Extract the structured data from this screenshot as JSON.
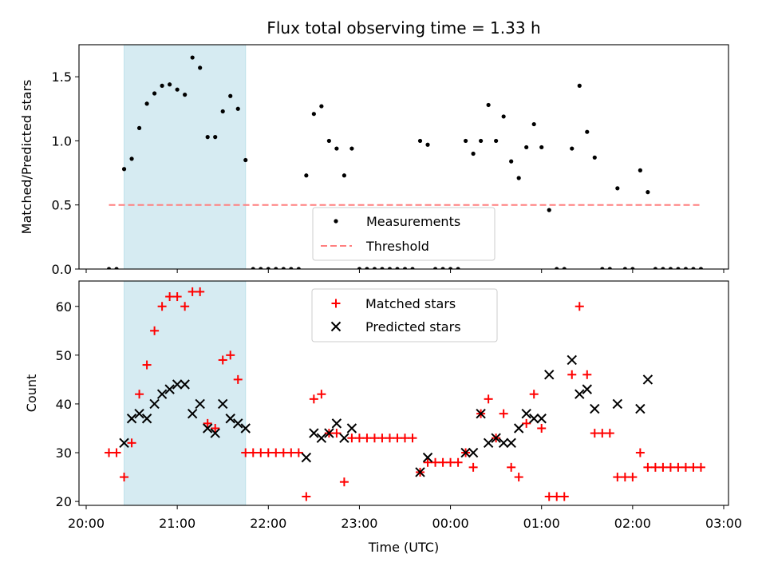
{
  "title": "Flux total observing time = 1.33 h",
  "colors": {
    "shade": "#add8e6",
    "measurements": "#000000",
    "threshold": "#ff7f7f",
    "matched": "#ff0000",
    "predicted": "#000000"
  },
  "chart_data": [
    {
      "type": "scatter",
      "ylabel": "Matched/Predicted stars",
      "xlim": [
        "20:00",
        "03:00"
      ],
      "ylim": [
        0,
        1.75
      ],
      "yticks": [
        {
          "value": 0.0,
          "label": "0.0"
        },
        {
          "value": 0.5,
          "label": "0.5"
        },
        {
          "value": 1.0,
          "label": "1.0"
        },
        {
          "value": 1.5,
          "label": "1.5"
        }
      ],
      "shaded_interval": [
        "20:25",
        "21:45"
      ],
      "legend": {
        "placement": "lower-center"
      },
      "threshold": {
        "name": "Threshold",
        "y": 0.5,
        "x_from": "20:15",
        "x_to": "02:45",
        "style": "dashed"
      },
      "series": [
        {
          "name": "Measurements",
          "marker": "dot",
          "points": [
            [
              "20:15",
              0
            ],
            [
              "20:20",
              0
            ],
            [
              "20:25",
              0.78
            ],
            [
              "20:30",
              0.86
            ],
            [
              "20:35",
              1.1
            ],
            [
              "20:40",
              1.29
            ],
            [
              "20:45",
              1.37
            ],
            [
              "20:50",
              1.43
            ],
            [
              "20:55",
              1.44
            ],
            [
              "21:00",
              1.4
            ],
            [
              "21:05",
              1.36
            ],
            [
              "21:10",
              1.65
            ],
            [
              "21:15",
              1.57
            ],
            [
              "21:20",
              1.03
            ],
            [
              "21:25",
              1.03
            ],
            [
              "21:30",
              1.23
            ],
            [
              "21:35",
              1.35
            ],
            [
              "21:40",
              1.25
            ],
            [
              "21:45",
              0.85
            ],
            [
              "21:50",
              0
            ],
            [
              "21:55",
              0
            ],
            [
              "22:00",
              0
            ],
            [
              "22:05",
              0
            ],
            [
              "22:10",
              0
            ],
            [
              "22:15",
              0
            ],
            [
              "22:20",
              0
            ],
            [
              "22:25",
              0.73
            ],
            [
              "22:30",
              1.21
            ],
            [
              "22:35",
              1.27
            ],
            [
              "22:40",
              1.0
            ],
            [
              "22:45",
              0.94
            ],
            [
              "22:50",
              0.73
            ],
            [
              "22:55",
              0.94
            ],
            [
              "23:00",
              0
            ],
            [
              "23:05",
              0
            ],
            [
              "23:10",
              0
            ],
            [
              "23:15",
              0
            ],
            [
              "23:20",
              0
            ],
            [
              "23:25",
              0
            ],
            [
              "23:30",
              0
            ],
            [
              "23:35",
              0
            ],
            [
              "23:40",
              1.0
            ],
            [
              "23:45",
              0.97
            ],
            [
              "23:50",
              0
            ],
            [
              "23:55",
              0
            ],
            [
              "00:00",
              0
            ],
            [
              "00:05",
              0
            ],
            [
              "00:10",
              1.0
            ],
            [
              "00:15",
              0.9
            ],
            [
              "00:20",
              1.0
            ],
            [
              "00:25",
              1.28
            ],
            [
              "00:30",
              1.0
            ],
            [
              "00:35",
              1.19
            ],
            [
              "00:40",
              0.84
            ],
            [
              "00:45",
              0.71
            ],
            [
              "00:50",
              0.95
            ],
            [
              "00:55",
              1.13
            ],
            [
              "01:00",
              0.95
            ],
            [
              "01:05",
              0.46
            ],
            [
              "01:10",
              0
            ],
            [
              "01:15",
              0
            ],
            [
              "01:20",
              0.94
            ],
            [
              "01:25",
              1.43
            ],
            [
              "01:30",
              1.07
            ],
            [
              "01:35",
              0.87
            ],
            [
              "01:40",
              0
            ],
            [
              "01:45",
              0
            ],
            [
              "01:50",
              0.63
            ],
            [
              "01:55",
              0
            ],
            [
              "02:00",
              0
            ],
            [
              "02:05",
              0.77
            ],
            [
              "02:10",
              0.6
            ],
            [
              "02:15",
              0
            ],
            [
              "02:20",
              0
            ],
            [
              "02:25",
              0
            ],
            [
              "02:30",
              0
            ],
            [
              "02:35",
              0
            ],
            [
              "02:40",
              0
            ],
            [
              "02:45",
              0
            ]
          ]
        }
      ]
    },
    {
      "type": "scatter",
      "xlabel": "Time (UTC)",
      "ylabel": "Count",
      "xlim": [
        "20:00",
        "03:00"
      ],
      "ylim": [
        19.2,
        65.2
      ],
      "xticks": [
        "20:00",
        "21:00",
        "22:00",
        "23:00",
        "00:00",
        "01:00",
        "02:00",
        "03:00"
      ],
      "yticks": [
        {
          "value": 20,
          "label": "20"
        },
        {
          "value": 30,
          "label": "30"
        },
        {
          "value": 40,
          "label": "40"
        },
        {
          "value": 50,
          "label": "50"
        },
        {
          "value": 60,
          "label": "60"
        }
      ],
      "shaded_interval": [
        "20:25",
        "21:45"
      ],
      "legend": {
        "placement": "top-center"
      },
      "series": [
        {
          "name": "Matched stars",
          "marker": "plus",
          "points": [
            [
              "20:15",
              30
            ],
            [
              "20:20",
              30
            ],
            [
              "20:25",
              25
            ],
            [
              "20:30",
              32
            ],
            [
              "20:35",
              42
            ],
            [
              "20:40",
              48
            ],
            [
              "20:45",
              55
            ],
            [
              "20:50",
              60
            ],
            [
              "20:55",
              62
            ],
            [
              "21:00",
              62
            ],
            [
              "21:05",
              60
            ],
            [
              "21:10",
              63
            ],
            [
              "21:15",
              63
            ],
            [
              "21:20",
              36
            ],
            [
              "21:25",
              35
            ],
            [
              "21:30",
              49
            ],
            [
              "21:35",
              50
            ],
            [
              "21:40",
              45
            ],
            [
              "21:45",
              30
            ],
            [
              "21:50",
              30
            ],
            [
              "21:55",
              30
            ],
            [
              "22:00",
              30
            ],
            [
              "22:05",
              30
            ],
            [
              "22:10",
              30
            ],
            [
              "22:15",
              30
            ],
            [
              "22:20",
              30
            ],
            [
              "22:25",
              21
            ],
            [
              "22:30",
              41
            ],
            [
              "22:35",
              42
            ],
            [
              "22:40",
              34
            ],
            [
              "22:45",
              34
            ],
            [
              "22:50",
              24
            ],
            [
              "22:55",
              33
            ],
            [
              "23:00",
              33
            ],
            [
              "23:05",
              33
            ],
            [
              "23:10",
              33
            ],
            [
              "23:15",
              33
            ],
            [
              "23:20",
              33
            ],
            [
              "23:25",
              33
            ],
            [
              "23:30",
              33
            ],
            [
              "23:35",
              33
            ],
            [
              "23:40",
              26
            ],
            [
              "23:45",
              28
            ],
            [
              "23:50",
              28
            ],
            [
              "23:55",
              28
            ],
            [
              "00:00",
              28
            ],
            [
              "00:05",
              28
            ],
            [
              "00:10",
              30
            ],
            [
              "00:15",
              27
            ],
            [
              "00:20",
              38
            ],
            [
              "00:25",
              41
            ],
            [
              "00:30",
              33
            ],
            [
              "00:35",
              38
            ],
            [
              "00:40",
              27
            ],
            [
              "00:45",
              25
            ],
            [
              "00:50",
              36
            ],
            [
              "00:55",
              42
            ],
            [
              "01:00",
              35
            ],
            [
              "01:05",
              21
            ],
            [
              "01:10",
              21
            ],
            [
              "01:15",
              21
            ],
            [
              "01:20",
              46
            ],
            [
              "01:25",
              60
            ],
            [
              "01:30",
              46
            ],
            [
              "01:35",
              34
            ],
            [
              "01:40",
              34
            ],
            [
              "01:45",
              34
            ],
            [
              "01:50",
              25
            ],
            [
              "01:55",
              25
            ],
            [
              "02:00",
              25
            ],
            [
              "02:05",
              30
            ],
            [
              "02:10",
              27
            ],
            [
              "02:15",
              27
            ],
            [
              "02:20",
              27
            ],
            [
              "02:25",
              27
            ],
            [
              "02:30",
              27
            ],
            [
              "02:35",
              27
            ],
            [
              "02:40",
              27
            ],
            [
              "02:45",
              27
            ]
          ]
        },
        {
          "name": "Predicted stars",
          "marker": "x",
          "points": [
            [
              "20:25",
              32
            ],
            [
              "20:30",
              37
            ],
            [
              "20:35",
              38
            ],
            [
              "20:40",
              37
            ],
            [
              "20:45",
              40
            ],
            [
              "20:50",
              42
            ],
            [
              "20:55",
              43
            ],
            [
              "21:00",
              44
            ],
            [
              "21:05",
              44
            ],
            [
              "21:10",
              38
            ],
            [
              "21:15",
              40
            ],
            [
              "21:20",
              35
            ],
            [
              "21:25",
              34
            ],
            [
              "21:30",
              40
            ],
            [
              "21:35",
              37
            ],
            [
              "21:40",
              36
            ],
            [
              "21:45",
              35
            ],
            [
              "22:25",
              29
            ],
            [
              "22:30",
              34
            ],
            [
              "22:35",
              33
            ],
            [
              "22:40",
              34
            ],
            [
              "22:45",
              36
            ],
            [
              "22:50",
              33
            ],
            [
              "22:55",
              35
            ],
            [
              "23:40",
              26
            ],
            [
              "23:45",
              29
            ],
            [
              "00:10",
              30
            ],
            [
              "00:15",
              30
            ],
            [
              "00:20",
              38
            ],
            [
              "00:25",
              32
            ],
            [
              "00:30",
              33
            ],
            [
              "00:35",
              32
            ],
            [
              "00:40",
              32
            ],
            [
              "00:45",
              35
            ],
            [
              "00:50",
              38
            ],
            [
              "00:55",
              37
            ],
            [
              "01:00",
              37
            ],
            [
              "01:05",
              46
            ],
            [
              "01:20",
              49
            ],
            [
              "01:25",
              42
            ],
            [
              "01:30",
              43
            ],
            [
              "01:35",
              39
            ],
            [
              "01:50",
              40
            ],
            [
              "02:05",
              39
            ],
            [
              "02:10",
              45
            ]
          ]
        }
      ]
    }
  ]
}
